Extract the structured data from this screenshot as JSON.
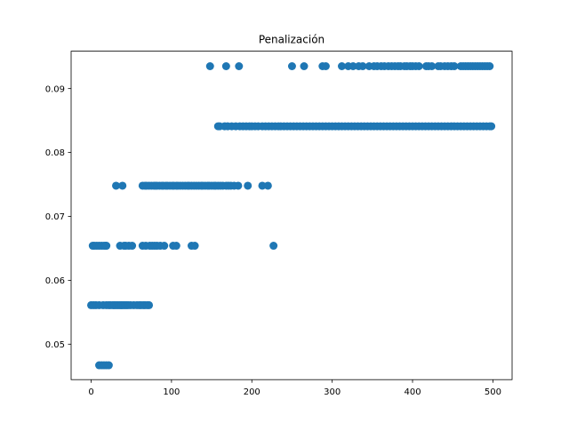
{
  "chart_data": {
    "type": "scatter",
    "title": "Penalización",
    "xlabel": "",
    "ylabel": "",
    "xlim": [
      -24.9,
      523.9
    ],
    "ylim": [
      0.04445,
      0.09585
    ],
    "xticks": [
      0,
      100,
      200,
      300,
      400,
      500
    ],
    "xtick_labels": [
      "0",
      "100",
      "200",
      "300",
      "400",
      "500"
    ],
    "yticks": [
      0.05,
      0.06,
      0.07,
      0.08,
      0.09
    ],
    "ytick_labels": [
      "0.05",
      "0.06",
      "0.07",
      "0.08",
      "0.09"
    ],
    "grid": false,
    "legend": "none",
    "marker_color": "#1f77b4",
    "series": [
      {
        "x": [
          2,
          4,
          7,
          10,
          13,
          16,
          18,
          19,
          36,
          41,
          43,
          47,
          51,
          64,
          68,
          73,
          76,
          79,
          82,
          86,
          91,
          102,
          106,
          125,
          129,
          227,
          0,
          3,
          6,
          10,
          15,
          19,
          22,
          24,
          27,
          29,
          31,
          33,
          35,
          37,
          38,
          40,
          42,
          44,
          46,
          49,
          53,
          57,
          60,
          62,
          65,
          67,
          70,
          72,
          10,
          13,
          16,
          19,
          22,
          31,
          39,
          64,
          67,
          69,
          72,
          75,
          78,
          80,
          82,
          85,
          88,
          90,
          93,
          95,
          98,
          101,
          103,
          106,
          108,
          111,
          114,
          117,
          120,
          122,
          125,
          128,
          131,
          134,
          137,
          139,
          142,
          145,
          147,
          150,
          153,
          155,
          158,
          161,
          164,
          168,
          171,
          174,
          178,
          183,
          195,
          213,
          220,
          158,
          160,
          166,
          170,
          175,
          180,
          185,
          189,
          193,
          197,
          200,
          204,
          208,
          213,
          217,
          221,
          225,
          229,
          233,
          236,
          240,
          244,
          248,
          252,
          256,
          260,
          264,
          268,
          272,
          276,
          280,
          284,
          288,
          292,
          296,
          300,
          304,
          308,
          312,
          316,
          320,
          324,
          328,
          332,
          336,
          340,
          344,
          348,
          352,
          356,
          360,
          364,
          368,
          372,
          376,
          380,
          384,
          388,
          392,
          396,
          400,
          404,
          408,
          412,
          416,
          420,
          424,
          428,
          432,
          436,
          440,
          444,
          448,
          452,
          456,
          460,
          464,
          468,
          472,
          476,
          480,
          484,
          488,
          492,
          496,
          498,
          148,
          168,
          184,
          250,
          265,
          288,
          292,
          312,
          320,
          326,
          333,
          338,
          346,
          352,
          356,
          361,
          365,
          370,
          374,
          378,
          382,
          385,
          390,
          393,
          397,
          400,
          404,
          408,
          417,
          420,
          424,
          432,
          435,
          440,
          444,
          448,
          452,
          460,
          463,
          466,
          469,
          472,
          475,
          478,
          481,
          484,
          487,
          490,
          493,
          496
        ],
        "y": [
          0.0654,
          0.0654,
          0.0654,
          0.0654,
          0.0654,
          0.0654,
          0.0654,
          0.0654,
          0.0654,
          0.0654,
          0.0654,
          0.0654,
          0.0654,
          0.0654,
          0.0654,
          0.0654,
          0.0654,
          0.0654,
          0.0654,
          0.0654,
          0.0654,
          0.0654,
          0.0654,
          0.0654,
          0.0654,
          0.0654,
          0.0561,
          0.0561,
          0.0561,
          0.0561,
          0.0561,
          0.0561,
          0.0561,
          0.0561,
          0.0561,
          0.0561,
          0.0561,
          0.0561,
          0.0561,
          0.0561,
          0.0561,
          0.0561,
          0.0561,
          0.0561,
          0.0561,
          0.0561,
          0.0561,
          0.0561,
          0.0561,
          0.0561,
          0.0561,
          0.0561,
          0.0561,
          0.0561,
          0.0467,
          0.0467,
          0.0467,
          0.0467,
          0.0467,
          0.0748,
          0.0748,
          0.0748,
          0.0748,
          0.0748,
          0.0748,
          0.0748,
          0.0748,
          0.0748,
          0.0748,
          0.0748,
          0.0748,
          0.0748,
          0.0748,
          0.0748,
          0.0748,
          0.0748,
          0.0748,
          0.0748,
          0.0748,
          0.0748,
          0.0748,
          0.0748,
          0.0748,
          0.0748,
          0.0748,
          0.0748,
          0.0748,
          0.0748,
          0.0748,
          0.0748,
          0.0748,
          0.0748,
          0.0748,
          0.0748,
          0.0748,
          0.0748,
          0.0748,
          0.0748,
          0.0748,
          0.0748,
          0.0748,
          0.0748,
          0.0748,
          0.0748,
          0.0748,
          0.0748,
          0.0748,
          0.0841,
          0.0841,
          0.0841,
          0.0841,
          0.0841,
          0.0841,
          0.0841,
          0.0841,
          0.0841,
          0.0841,
          0.0841,
          0.0841,
          0.0841,
          0.0841,
          0.0841,
          0.0841,
          0.0841,
          0.0841,
          0.0841,
          0.0841,
          0.0841,
          0.0841,
          0.0841,
          0.0841,
          0.0841,
          0.0841,
          0.0841,
          0.0841,
          0.0841,
          0.0841,
          0.0841,
          0.0841,
          0.0841,
          0.0841,
          0.0841,
          0.0841,
          0.0841,
          0.0841,
          0.0841,
          0.0841,
          0.0841,
          0.0841,
          0.0841,
          0.0841,
          0.0841,
          0.0841,
          0.0841,
          0.0841,
          0.0841,
          0.0841,
          0.0841,
          0.0841,
          0.0841,
          0.0841,
          0.0841,
          0.0841,
          0.0841,
          0.0841,
          0.0841,
          0.0841,
          0.0841,
          0.0841,
          0.0841,
          0.0841,
          0.0841,
          0.0841,
          0.0841,
          0.0841,
          0.0841,
          0.0841,
          0.0841,
          0.0841,
          0.0841,
          0.0841,
          0.0841,
          0.0841,
          0.0841,
          0.0841,
          0.0841,
          0.0841,
          0.0841,
          0.0841,
          0.0841,
          0.0841,
          0.0841,
          0.0841,
          0.0935,
          0.0935,
          0.0935,
          0.0935,
          0.0935,
          0.0935,
          0.0935,
          0.0935,
          0.0935,
          0.0935,
          0.0935,
          0.0935,
          0.0935,
          0.0935,
          0.0935,
          0.0935,
          0.0935,
          0.0935,
          0.0935,
          0.0935,
          0.0935,
          0.0935,
          0.0935,
          0.0935,
          0.0935,
          0.0935,
          0.0935,
          0.0935,
          0.0935,
          0.0935,
          0.0935,
          0.0935,
          0.0935,
          0.0935,
          0.0935,
          0.0935,
          0.0935,
          0.0935,
          0.0935,
          0.0935,
          0.0935,
          0.0935,
          0.0935,
          0.0935,
          0.0935,
          0.0935,
          0.0935,
          0.0935,
          0.0935,
          0.0935
        ]
      }
    ]
  }
}
